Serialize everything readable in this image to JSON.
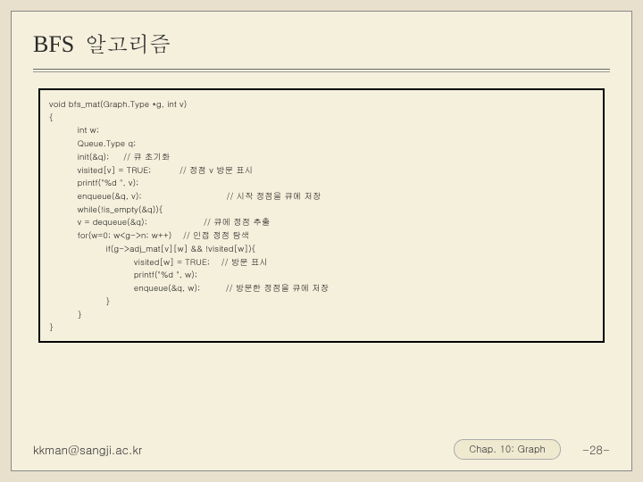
{
  "title": {
    "en": "BFS",
    "kr": "알고리즘"
  },
  "code": {
    "lines": [
      "void bfs_mat(Graph.Type *g, int v)",
      "{",
      "          int w;",
      "          Queue.Type q;",
      "          init(&q);     // 큐 초기화",
      "          visited[v] = TRUE;          // 정점 v 방문 표시",
      "          printf(\"%d \", v);",
      "          enqueue(&q, v);                              // 시작 정점을 큐에 저장",
      "          while(!is_empty(&q)){",
      "          v = dequeue(&q);                    // 큐에 정점 추출",
      "          for(w=0; w<g->n; w++)    // 인접 정점 탐색",
      "                    if(g->adj_mat[v][w] && !visited[w]){",
      "                              visited[w] = TRUE;    // 방문 표시",
      "                              printf(\"%d \", w);",
      "                              enqueue(&q, w);         // 방문한 정점을 큐에 저장",
      "                    }",
      "          }",
      "}"
    ]
  },
  "footer": {
    "email": "kkman@sangji.ac.kr",
    "chapter": "Chap. 10: Graph",
    "page": "-28-"
  },
  "colors": {
    "page_bg": "#f5f0dc",
    "outer_bg": "#e8e0cc",
    "text": "#1a1a1a",
    "rule": "#666"
  }
}
